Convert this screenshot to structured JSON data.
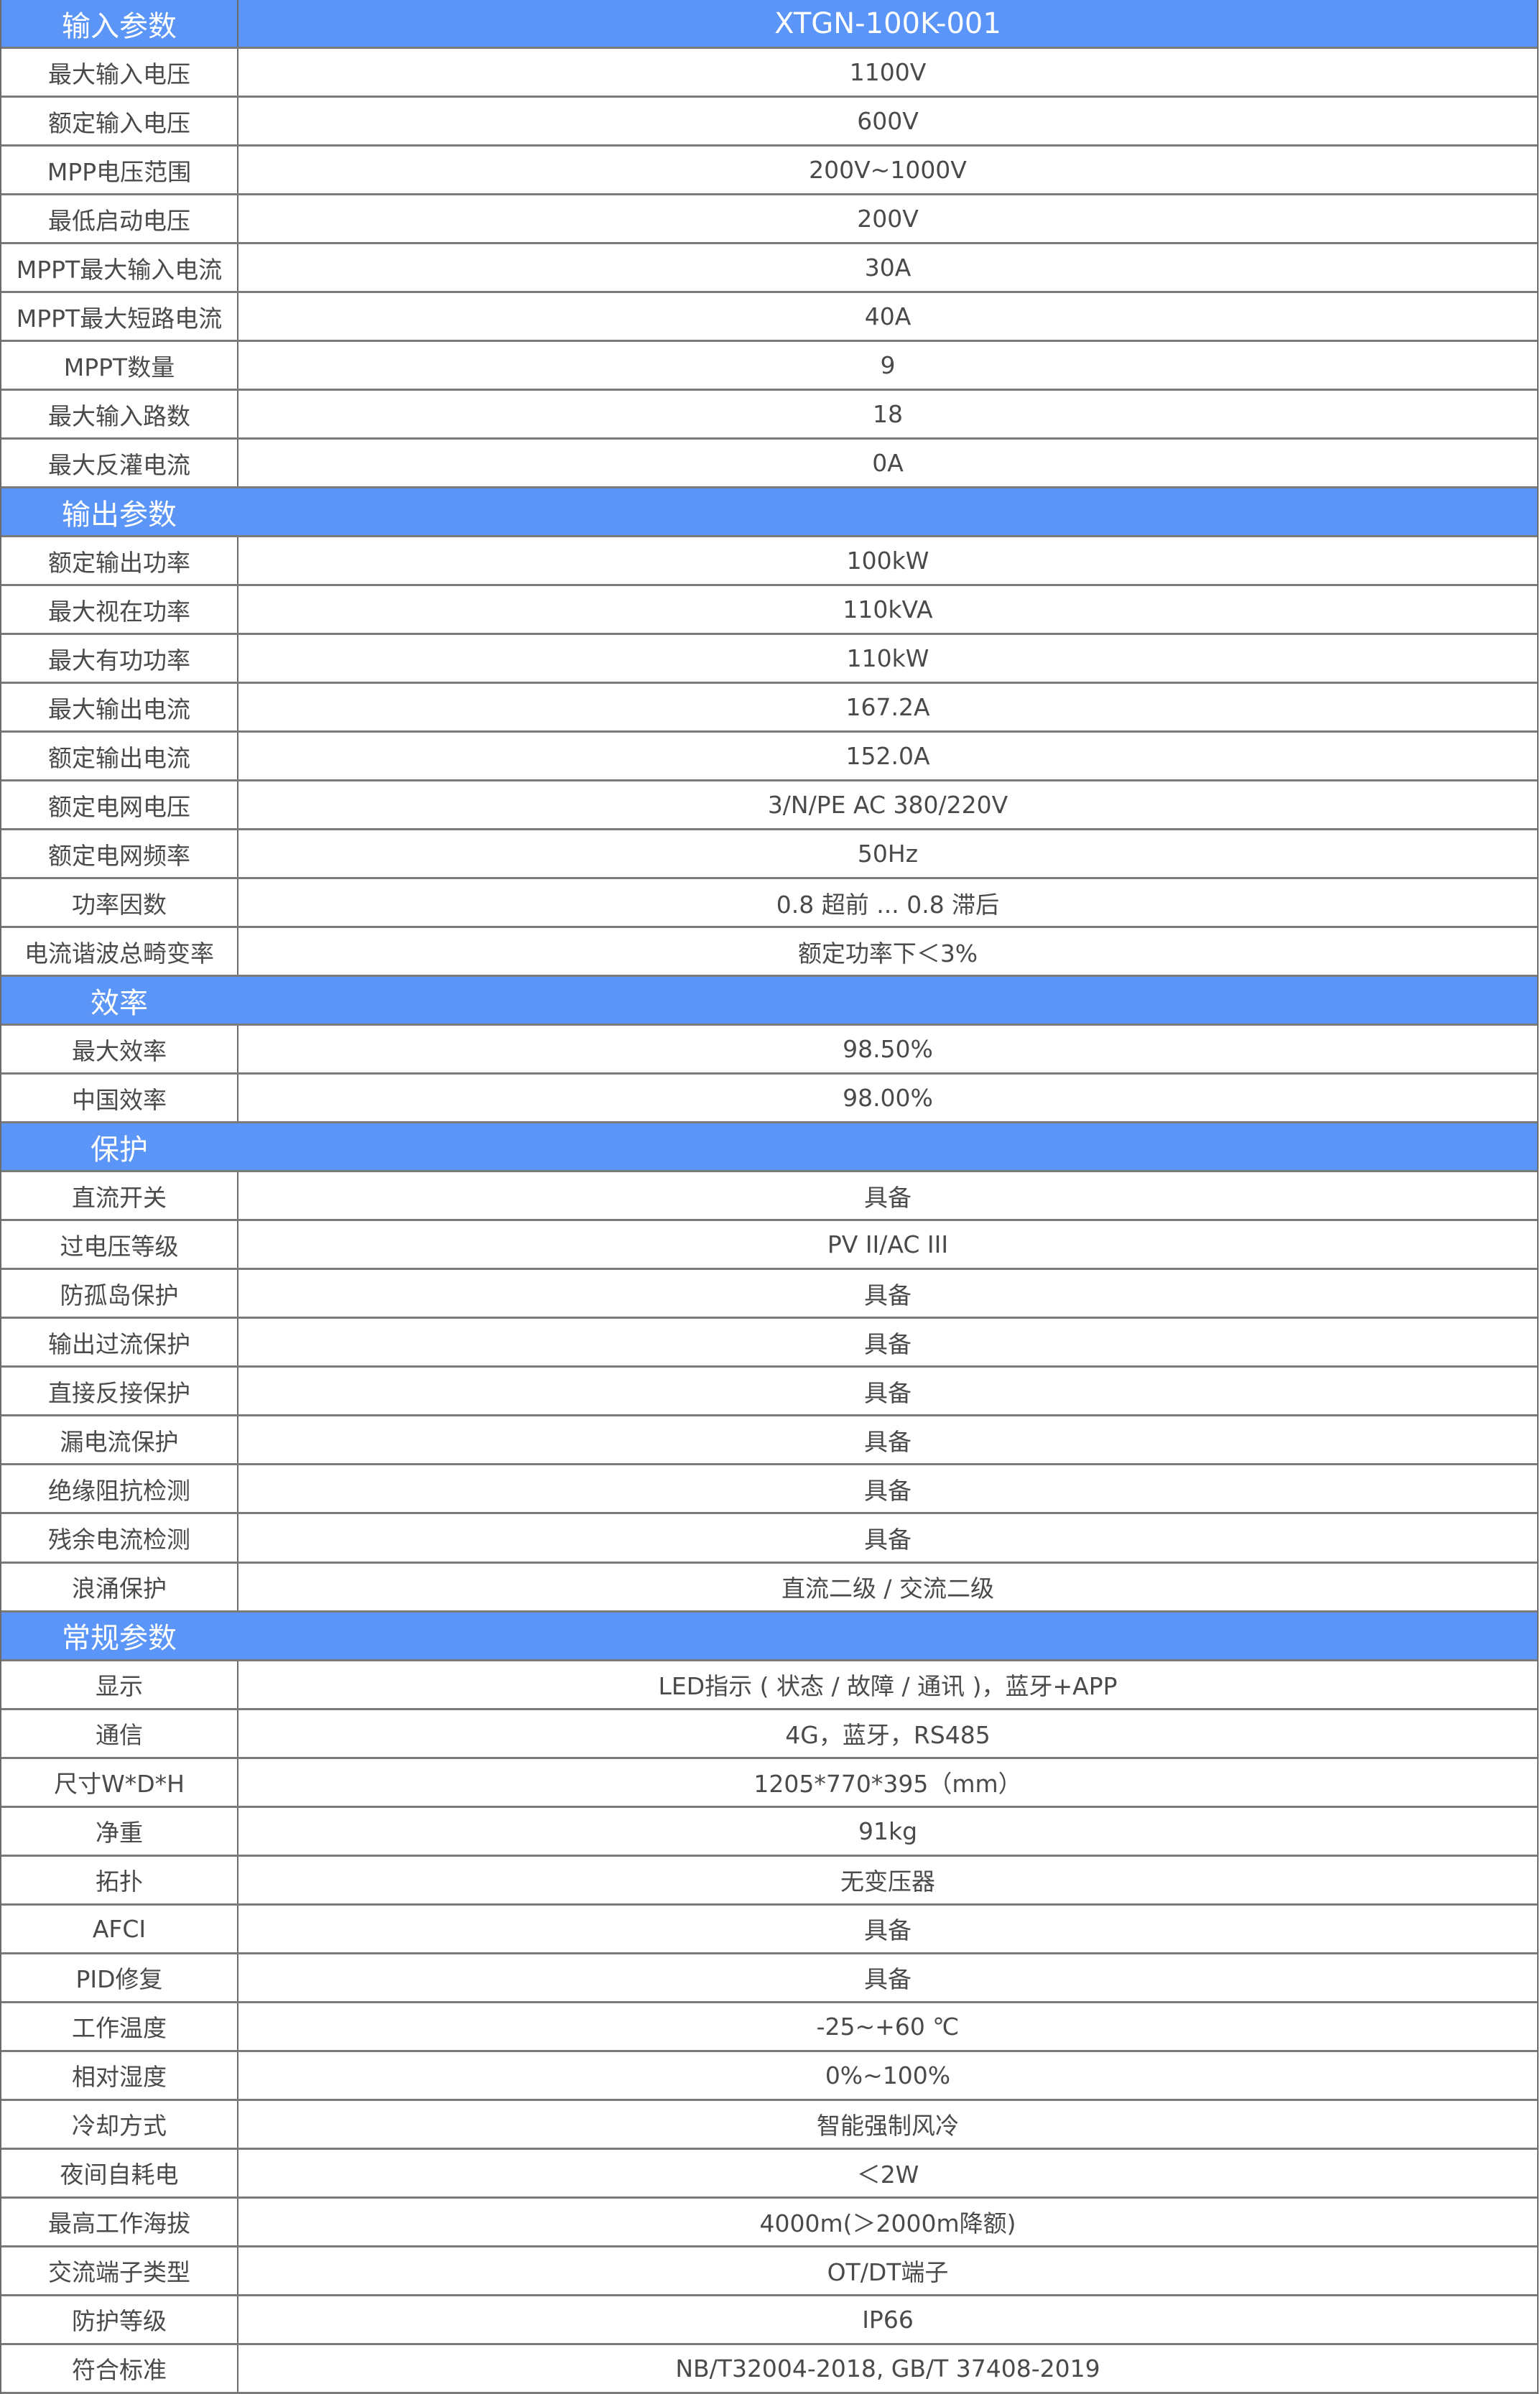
{
  "header": {
    "label": "输入参数",
    "model": "XTGN-100K-001"
  },
  "colors": {
    "header_bg": "#5a95f7",
    "text": "#4a4a4a",
    "grid": "#7a7a7a"
  },
  "sections": [
    {
      "title": null,
      "rows": [
        [
          "最大输入电压",
          "1100V"
        ],
        [
          "额定输入电压",
          "600V"
        ],
        [
          "MPP电压范围",
          "200V~1000V"
        ],
        [
          "最低启动电压",
          "200V"
        ],
        [
          "MPPT最大输入电流",
          "30A"
        ],
        [
          "MPPT最大短路电流",
          "40A"
        ],
        [
          "MPPT数量",
          "9"
        ],
        [
          "最大输入路数",
          "18"
        ],
        [
          "最大反灌电流",
          "0A"
        ]
      ]
    },
    {
      "title": "输出参数",
      "rows": [
        [
          "额定输出功率",
          "100kW"
        ],
        [
          "最大视在功率",
          "110kVA"
        ],
        [
          "最大有功功率",
          "110kW"
        ],
        [
          "最大输出电流",
          "167.2A"
        ],
        [
          "额定输出电流",
          "152.0A"
        ],
        [
          "额定电网电压",
          "3/N/PE AC 380/220V"
        ],
        [
          "额定电网频率",
          "50Hz"
        ],
        [
          "功率因数",
          "0.8 超前 ... 0.8 滞后"
        ],
        [
          "电流谐波总畸变率",
          "额定功率下＜3%"
        ]
      ]
    },
    {
      "title": "效率",
      "rows": [
        [
          "最大效率",
          "98.50%"
        ],
        [
          "中国效率",
          "98.00%"
        ]
      ]
    },
    {
      "title": "保护",
      "rows": [
        [
          "直流开关",
          "具备"
        ],
        [
          "过电压等级",
          "PV II/AC III"
        ],
        [
          "防孤岛保护",
          "具备"
        ],
        [
          "输出过流保护",
          "具备"
        ],
        [
          "直接反接保护",
          "具备"
        ],
        [
          "漏电流保护",
          "具备"
        ],
        [
          "绝缘阻抗检测",
          "具备"
        ],
        [
          "残余电流检测",
          "具备"
        ],
        [
          "浪涌保护",
          "直流二级 / 交流二级"
        ]
      ]
    },
    {
      "title": "常规参数",
      "rows": [
        [
          "显示",
          "LED指示 ( 状态 / 故障 / 通讯 )，蓝牙+APP"
        ],
        [
          "通信",
          "4G，蓝牙，RS485"
        ],
        [
          "尺寸W*D*H",
          "1205*770*395（mm）"
        ],
        [
          "净重",
          "91kg"
        ],
        [
          "拓扑",
          "无变压器"
        ],
        [
          "AFCI",
          "具备"
        ],
        [
          "PID修复",
          "具备"
        ],
        [
          "工作温度",
          "-25~+60 ℃"
        ],
        [
          "相对湿度",
          "0%~100%"
        ],
        [
          "冷却方式",
          "智能强制风冷"
        ],
        [
          "夜间自耗电",
          "＜2W"
        ],
        [
          "最高工作海拔",
          "4000m(＞2000m降额)"
        ],
        [
          "交流端子类型",
          "OT/DT端子"
        ],
        [
          "防护等级",
          "IP66"
        ],
        [
          "符合标准",
          "NB/T32004-2018, GB/T 37408-2019"
        ]
      ]
    }
  ]
}
